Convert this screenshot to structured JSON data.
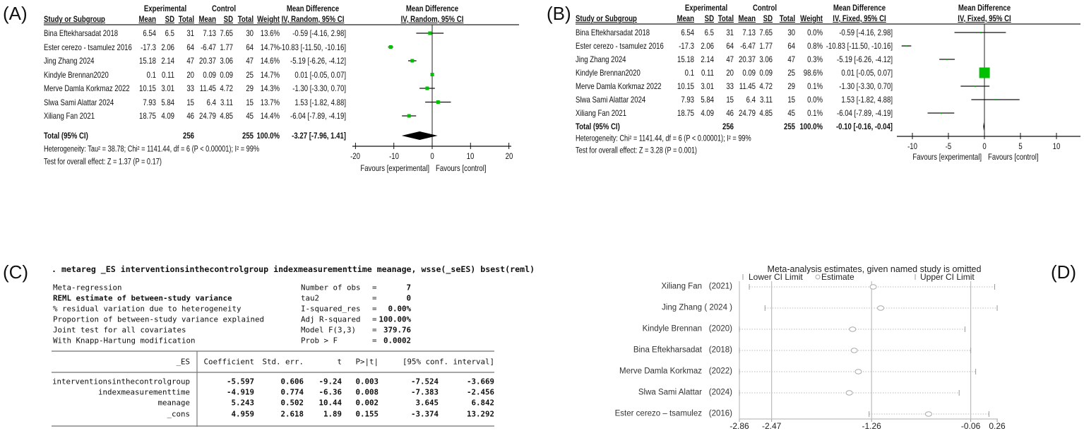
{
  "panel_a": {
    "label": "(A)",
    "header": {
      "experimental": "Experimental",
      "control": "Control",
      "md": "Mean Difference",
      "md_plot": "Mean Difference",
      "study": "Study or Subgroup",
      "cols": [
        "Mean",
        "SD",
        "Total",
        "Mean",
        "SD",
        "Total",
        "Weight"
      ],
      "md_method": "IV, Random, 95% CI",
      "plot_method": "IV, Random, 95% CI"
    },
    "rows": [
      {
        "study": "Bina Eftekharsadat 2018",
        "cells": [
          "6.54",
          "6.5",
          "31",
          "7.13",
          "7.65",
          "30",
          "13.6%"
        ],
        "md_text": "-0.59 [-4.16, 2.98]"
      },
      {
        "study": "Ester cerezo - tsamulez 2016",
        "cells": [
          "-17.3",
          "2.06",
          "64",
          "-6.47",
          "1.77",
          "64",
          "14.7%"
        ],
        "md_text": "-10.83 [-11.50, -10.16]"
      },
      {
        "study": "Jing Zhang 2024",
        "cells": [
          "15.18",
          "2.14",
          "47",
          "20.37",
          "3.06",
          "47",
          "14.6%"
        ],
        "md_text": "-5.19 [-6.26, -4.12]"
      },
      {
        "study": "Kindyle Brennan2020",
        "cells": [
          "0.1",
          "0.11",
          "20",
          "0.09",
          "0.09",
          "25",
          "14.7%"
        ],
        "md_text": "0.01 [-0.05, 0.07]"
      },
      {
        "study": "Merve Damla Korkmaz 2022",
        "cells": [
          "10.15",
          "3.01",
          "33",
          "11.45",
          "4.72",
          "29",
          "14.3%"
        ],
        "md_text": "-1.30 [-3.30, 0.70]"
      },
      {
        "study": "Slwa Sami Alattar 2024",
        "cells": [
          "7.93",
          "5.84",
          "15",
          "6.4",
          "3.11",
          "15",
          "13.7%"
        ],
        "md_text": "1.53 [-1.82, 4.88]"
      },
      {
        "study": "Xiliang Fan 2021",
        "cells": [
          "18.75",
          "4.09",
          "46",
          "24.79",
          "4.85",
          "45",
          "14.4%"
        ],
        "md_text": "-6.04 [-7.89, -4.19]"
      }
    ],
    "total": {
      "label": "Total (95% CI)",
      "exp_total": "256",
      "ctl_total": "255",
      "weight": "100.0%",
      "md_text": "-3.27 [-7.96, 1.41]"
    },
    "heterogeneity": "Heterogeneity: Tau² = 38.78; Chi² = 1141.44, df = 6 (P < 0.00001); I² = 99%",
    "overall_effect": "Test for overall effect: Z = 1.37 (P = 0.17)",
    "favours_left": "Favours [experimental]",
    "favours_right": "Favours [control]"
  },
  "panel_b": {
    "label": "(B)",
    "header": {
      "experimental": "Experimental",
      "control": "Control",
      "md": "Mean Difference",
      "md_plot": "Mean Difference",
      "study": "Study or Subgroup",
      "cols": [
        "Mean",
        "SD",
        "Total",
        "Mean",
        "SD",
        "Total",
        "Weight"
      ],
      "md_method": "IV, Fixed, 95% CI",
      "plot_method": "IV, Fixed, 95% CI"
    },
    "rows": [
      {
        "study": "Bina Eftekharsadat 2018",
        "cells": [
          "6.54",
          "6.5",
          "31",
          "7.13",
          "7.65",
          "30",
          "0.0%"
        ],
        "md_text": "-0.59 [-4.16, 2.98]"
      },
      {
        "study": "Ester cerezo - tsamulez 2016",
        "cells": [
          "-17.3",
          "2.06",
          "64",
          "-6.47",
          "1.77",
          "64",
          "0.8%"
        ],
        "md_text": "-10.83 [-11.50, -10.16]"
      },
      {
        "study": "Jing Zhang 2024",
        "cells": [
          "15.18",
          "2.14",
          "47",
          "20.37",
          "3.06",
          "47",
          "0.3%"
        ],
        "md_text": "-5.19 [-6.26, -4.12]"
      },
      {
        "study": "Kindyle Brennan2020",
        "cells": [
          "0.1",
          "0.11",
          "20",
          "0.09",
          "0.09",
          "25",
          "98.6%"
        ],
        "md_text": "0.01 [-0.05, 0.07]"
      },
      {
        "study": "Merve Damla Korkmaz 2022",
        "cells": [
          "10.15",
          "3.01",
          "33",
          "11.45",
          "4.72",
          "29",
          "0.1%"
        ],
        "md_text": "-1.30 [-3.30, 0.70]"
      },
      {
        "study": "Slwa Sami Alattar 2024",
        "cells": [
          "7.93",
          "5.84",
          "15",
          "6.4",
          "3.11",
          "15",
          "0.0%"
        ],
        "md_text": "1.53 [-1.82, 4.88]"
      },
      {
        "study": "Xiliang Fan 2021",
        "cells": [
          "18.75",
          "4.09",
          "46",
          "24.79",
          "4.85",
          "45",
          "0.1%"
        ],
        "md_text": "-6.04 [-7.89, -4.19]"
      }
    ],
    "total": {
      "label": "Total (95% CI)",
      "exp_total": "256",
      "ctl_total": "255",
      "weight": "100.0%",
      "md_text": "-0.10 [-0.16, -0.04]"
    },
    "heterogeneity": "Heterogeneity: Chi² = 1141.44, df = 6 (P < 0.00001); I² = 99%",
    "overall_effect": "Test for overall effect: Z = 3.28 (P = 0.001)",
    "favours_left": "Favours [experimental]",
    "favours_right": "Favours [control]"
  },
  "panel_c": {
    "label": "(C)",
    "command": ". metareg _ES interventionsinthecontrolgroup indexmeasurementtime meanage, wsse(_seES) bsest(reml)",
    "summary_left": [
      "Meta-regression",
      "REML estimate of between-study variance",
      "% residual variation due to heterogeneity",
      "Proportion of between-study variance explained",
      "Joint test for all covariates",
      "With Knapp-Hartung modification"
    ],
    "summary_right": [
      {
        "label": "Number of obs",
        "eq": "=",
        "value": "7"
      },
      {
        "label": "tau2",
        "eq": "=",
        "value": "0"
      },
      {
        "label": "I-squared_res",
        "eq": "=",
        "value": "0.00%"
      },
      {
        "label": "Adj R-squared",
        "eq": "=",
        "value": "100.00%"
      },
      {
        "label": "Model F(3,3)",
        "eq": "=",
        "value": "379.76"
      },
      {
        "label": "Prob > F",
        "eq": "=",
        "value": "0.0002"
      }
    ],
    "table_header": [
      "_ES",
      "Coefficient",
      "Std. err.",
      "t",
      "P>|t|",
      "[95% conf. interval]"
    ],
    "table_rows": [
      {
        "name": "interventionsinthecontrolgroup",
        "values": [
          "-5.597",
          "0.606",
          "-9.24",
          "0.003",
          "-7.524",
          "-3.669"
        ]
      },
      {
        "name": "indexmeasurementtime",
        "values": [
          "-4.919",
          "0.774",
          "-6.36",
          "0.008",
          "-7.383",
          "-2.456"
        ]
      },
      {
        "name": "meanage",
        "values": [
          "5.243",
          "0.502",
          "10.44",
          "0.002",
          "3.645",
          "6.842"
        ]
      },
      {
        "name": "_cons",
        "values": [
          "4.959",
          "2.618",
          "1.89",
          "0.155",
          "-3.374",
          "13.292"
        ]
      }
    ]
  },
  "panel_d": {
    "label": "(D)"
  },
  "chart_data": [
    {
      "type": "forest",
      "panel": "A",
      "xlim": [
        -20,
        20
      ],
      "x_ticks": [
        "-20",
        "-10",
        "0",
        "10",
        "20"
      ],
      "marker_color": "#00c000",
      "studies": [
        {
          "md": -0.59,
          "lo": -4.16,
          "hi": 2.98,
          "weight": 13.6
        },
        {
          "md": -10.83,
          "lo": -11.5,
          "hi": -10.16,
          "weight": 14.7
        },
        {
          "md": -5.19,
          "lo": -6.26,
          "hi": -4.12,
          "weight": 14.6
        },
        {
          "md": 0.01,
          "lo": -0.05,
          "hi": 0.07,
          "weight": 14.7
        },
        {
          "md": -1.3,
          "lo": -3.3,
          "hi": 0.7,
          "weight": 14.3
        },
        {
          "md": 1.53,
          "lo": -1.82,
          "hi": 4.88,
          "weight": 13.7
        },
        {
          "md": -6.04,
          "lo": -7.89,
          "hi": -4.19,
          "weight": 14.4
        }
      ],
      "pooled": {
        "md": -3.27,
        "lo": -7.96,
        "hi": 1.41
      }
    },
    {
      "type": "forest",
      "panel": "B",
      "xlim": [
        -10,
        10
      ],
      "x_ticks": [
        "-10",
        "-5",
        "0",
        "5",
        "10"
      ],
      "marker_color": "#00c000",
      "studies": [
        {
          "md": -0.59,
          "lo": -4.16,
          "hi": 2.98,
          "weight": 0.0
        },
        {
          "md": -10.83,
          "lo": -11.5,
          "hi": -10.16,
          "weight": 0.8
        },
        {
          "md": -5.19,
          "lo": -6.26,
          "hi": -4.12,
          "weight": 0.3
        },
        {
          "md": 0.01,
          "lo": -0.05,
          "hi": 0.07,
          "weight": 98.6
        },
        {
          "md": -1.3,
          "lo": -3.3,
          "hi": 0.7,
          "weight": 0.1
        },
        {
          "md": 1.53,
          "lo": -1.82,
          "hi": 4.88,
          "weight": 0.0
        },
        {
          "md": -6.04,
          "lo": -7.89,
          "hi": -4.19,
          "weight": 0.1
        }
      ],
      "pooled": {
        "md": -0.1,
        "lo": -0.16,
        "hi": -0.04
      }
    },
    {
      "type": "interval",
      "panel": "D",
      "title": "Meta-analysis estimates, given named study is omitted",
      "legend": [
        "Lower CI Limit",
        "Estimate",
        "Upper CI Limit"
      ],
      "xlim": [
        -2.86,
        0.26
      ],
      "x_ticks": [
        "-2.86",
        "-2.47",
        "-1.26",
        "-0.06",
        "0.26"
      ],
      "studies": [
        {
          "name": "Xiliang Fan",
          "year": "(2021)",
          "lower": -2.74,
          "estimate": -1.24,
          "upper": 0.23
        },
        {
          "name": "Jing Zhang",
          "year": "(  2024  )",
          "lower": -2.55,
          "estimate": -1.15,
          "upper": 0.26
        },
        {
          "name": "Kindyle Brennan",
          "year": "(2020)",
          "lower": -2.86,
          "estimate": -1.49,
          "upper": -0.13
        },
        {
          "name": "Bina Eftekharsadat",
          "year": "(2018)",
          "lower": -2.86,
          "estimate": -1.47,
          "upper": -0.06
        },
        {
          "name": "Merve Damla Korkmaz",
          "year": "(2022)",
          "lower": -2.86,
          "estimate": -1.42,
          "upper": 0.0
        },
        {
          "name": "Slwa Sami Alattar",
          "year": "(2024)",
          "lower": -2.86,
          "estimate": -1.53,
          "upper": -0.2
        },
        {
          "name": "Ester cerezo – tsamulez",
          "year": "(2016)",
          "lower": -1.29,
          "estimate": -0.57,
          "upper": 0.16
        }
      ]
    }
  ]
}
